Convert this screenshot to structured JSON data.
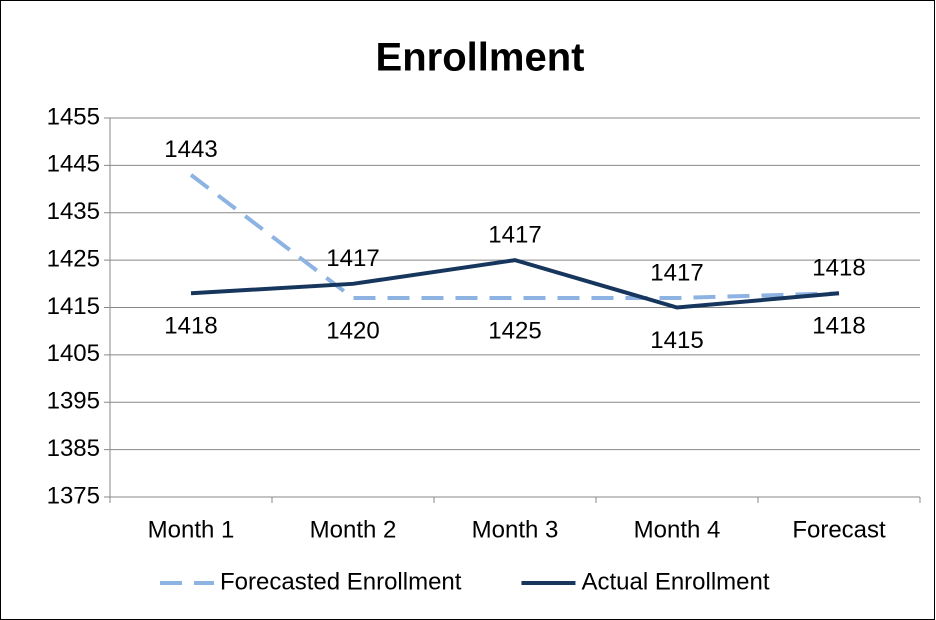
{
  "chart_data": {
    "type": "line",
    "title": "Enrollment",
    "categories": [
      "Month 1",
      "Month 2",
      "Month 3",
      "Month 4",
      "Forecast"
    ],
    "series": [
      {
        "name": "Forecasted Enrollment",
        "color": "#8db3e2",
        "dashed": true,
        "values": [
          1443,
          1417,
          1417,
          1417,
          1418
        ]
      },
      {
        "name": "Actual Enrollment",
        "color": "#17365d",
        "dashed": false,
        "values": [
          1418,
          1420,
          1425,
          1415,
          1418
        ]
      }
    ],
    "ylim": [
      1375,
      1455
    ],
    "yticks": [
      1375,
      1385,
      1395,
      1405,
      1415,
      1425,
      1435,
      1445,
      1455
    ],
    "grid": true,
    "legend": "bottom"
  }
}
